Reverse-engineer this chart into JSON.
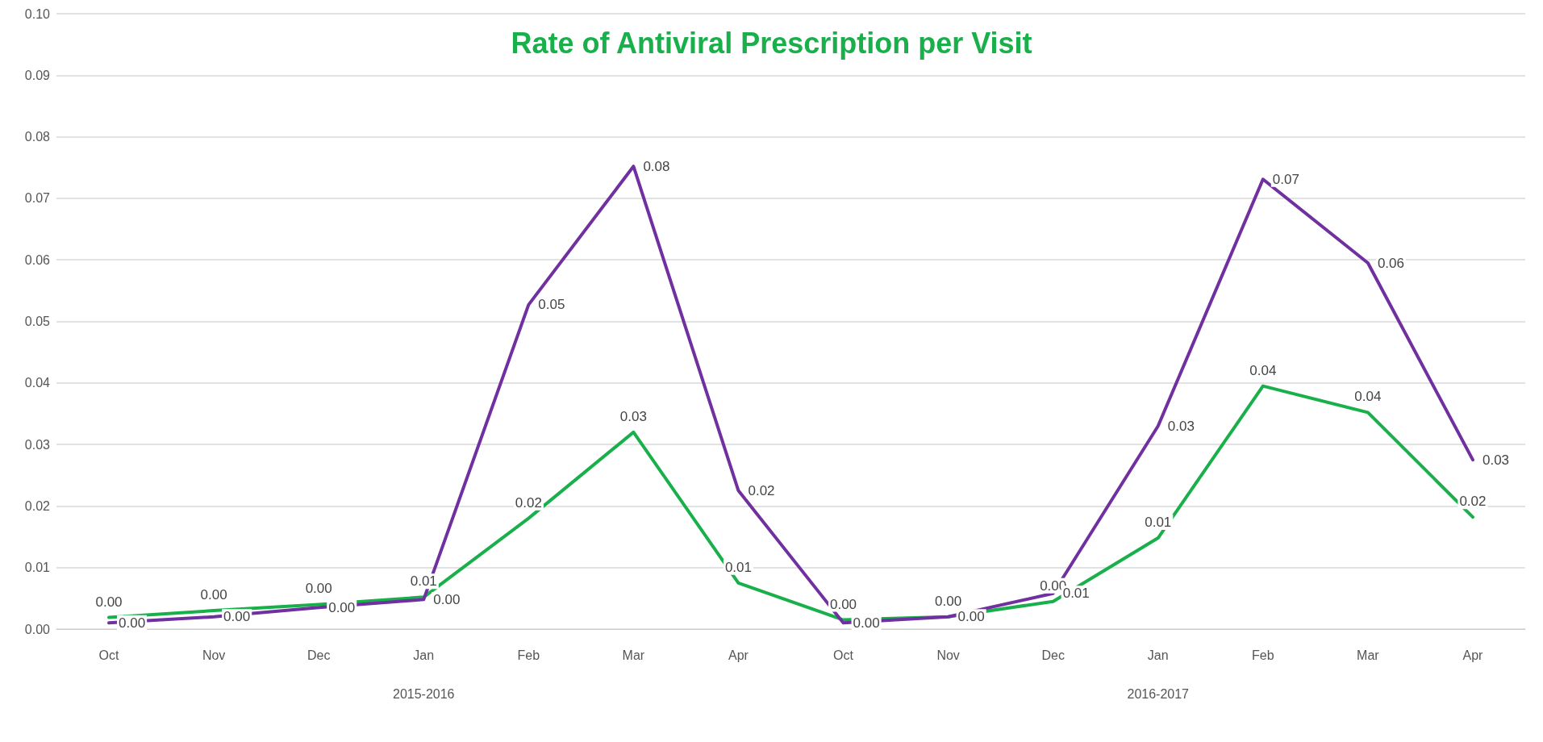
{
  "chart_data": {
    "type": "line",
    "title": "Rate of Antiviral Prescription per Visit",
    "categories": [
      "Oct",
      "Nov",
      "Dec",
      "Jan",
      "Feb",
      "Mar",
      "Apr",
      "Oct",
      "Nov",
      "Dec",
      "Jan",
      "Feb",
      "Mar",
      "Apr"
    ],
    "series": [
      {
        "color": "#19b04b",
        "values": [
          0.0019,
          0.003,
          0.004,
          0.0052,
          0.018,
          0.032,
          0.0075,
          0.0015,
          0.002,
          0.0045,
          0.0148,
          0.0395,
          0.0352,
          0.0182
        ],
        "value_labels": [
          "0.00",
          "0.00",
          "0.00",
          "0.01",
          "0.02",
          "0.03",
          "0.01",
          "0.00",
          "0.00",
          "0.00",
          "0.01",
          "0.04",
          "0.04",
          "0.02"
        ]
      },
      {
        "color": "#7030a0",
        "values": [
          0.001,
          0.002,
          0.0035,
          0.0048,
          0.0527,
          0.0752,
          0.0225,
          0.001,
          0.002,
          0.0058,
          0.033,
          0.0731,
          0.0595,
          0.0275
        ],
        "value_labels": [
          "0.00",
          "0.00",
          "0.00",
          "0.00",
          "0.05",
          "0.08",
          "0.02",
          "0.00",
          "0.00",
          "0.01",
          "0.03",
          "0.07",
          "0.06",
          "0.03"
        ]
      }
    ],
    "annotations": [
      "2015-2016",
      "2016-2017"
    ],
    "ylim": [
      0,
      0.1
    ],
    "yticks": [
      {
        "value": 0,
        "label": "0.00"
      },
      {
        "value": 0.01,
        "label": "0.01"
      },
      {
        "value": 0.02,
        "label": "0.02"
      },
      {
        "value": 0.03,
        "label": "0.03"
      },
      {
        "value": 0.04,
        "label": "0.04"
      },
      {
        "value": 0.05,
        "label": "0.05"
      },
      {
        "value": 0.06,
        "label": "0.06"
      },
      {
        "value": 0.07,
        "label": "0.07"
      },
      {
        "value": 0.08,
        "label": "0.08"
      },
      {
        "value": 0.09,
        "label": "0.09"
      },
      {
        "value": 0.1,
        "label": "0.10"
      }
    ],
    "grid": "y",
    "marker": "none",
    "line_style": "solid"
  }
}
